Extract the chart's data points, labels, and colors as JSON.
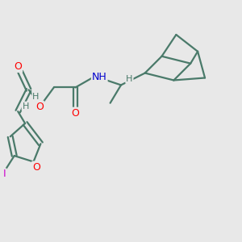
{
  "bg_color": "#e8e8e8",
  "bond_color": "#4a7a6a",
  "bond_width": 1.6,
  "atom_colors": {
    "O": "#ff0000",
    "N": "#0000cc",
    "I": "#cc00cc",
    "H": "#4a7a6a",
    "C": "#4a7a6a"
  },
  "font_size": 8.5
}
